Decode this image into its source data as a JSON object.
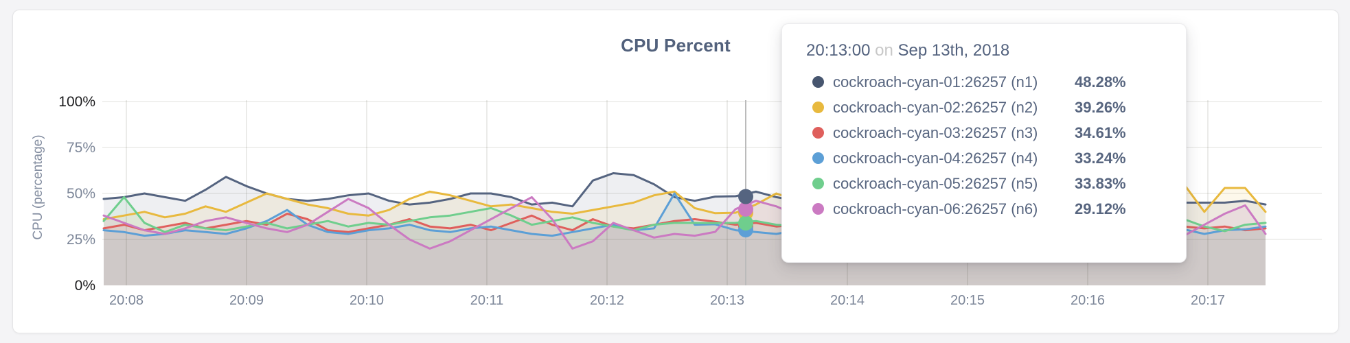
{
  "page": {
    "background": "#f4f4f6"
  },
  "chart_data": {
    "type": "line",
    "title": "CPU Percent",
    "ylabel": "CPU (percentage)",
    "xlabel": "",
    "ylim": [
      0,
      100
    ],
    "grid": true,
    "legend_position": "none",
    "x_ticks": [
      "20:08",
      "20:09",
      "20:10",
      "20:11",
      "20:12",
      "20:13",
      "20:14",
      "20:15",
      "20:16",
      "20:17"
    ],
    "y_ticks": [
      {
        "label": "0%",
        "value": 0,
        "extreme": true
      },
      {
        "label": "25%",
        "value": 25,
        "extreme": false
      },
      {
        "label": "50%",
        "value": 50,
        "extreme": false
      },
      {
        "label": "75%",
        "value": 75,
        "extreme": false
      },
      {
        "label": "100%",
        "value": 100,
        "extreme": true
      }
    ],
    "interval_seconds": 10,
    "fill_opacity": 0.1,
    "series": [
      {
        "name": "cockroach-cyan-01:26257 (n1)",
        "color": "#556480",
        "values": [
          47,
          48,
          50,
          48,
          46,
          52,
          59,
          54,
          50,
          47,
          46,
          47,
          49,
          50,
          46,
          44,
          45,
          47,
          50,
          50,
          48,
          44,
          45,
          43,
          57,
          61,
          60,
          55,
          48,
          46,
          48.28,
          48.5,
          51,
          48,
          46,
          45,
          46,
          47,
          46,
          47,
          48,
          47,
          46,
          47,
          46,
          45,
          46,
          47,
          46,
          45,
          44,
          45,
          44,
          45,
          45,
          45,
          46,
          44
        ]
      },
      {
        "name": "cockroach-cyan-02:26257 (n2)",
        "color": "#e8b93e",
        "values": [
          36,
          38,
          40,
          37,
          39,
          43,
          40,
          45,
          50,
          47,
          44,
          42,
          39,
          38,
          41,
          47,
          51,
          49,
          46,
          43,
          44,
          42,
          40,
          39,
          41,
          43,
          45,
          49,
          51,
          42,
          39.26,
          39.5,
          44,
          50,
          46,
          43,
          41,
          40,
          42,
          43,
          42,
          41,
          40,
          42,
          41,
          40,
          41,
          42,
          43,
          46,
          44,
          47,
          50,
          55,
          40,
          53,
          53,
          40
        ]
      },
      {
        "name": "cockroach-cyan-03:26257 (n3)",
        "color": "#df5f5c",
        "values": [
          31,
          33,
          30,
          32,
          34,
          31,
          33,
          35,
          33,
          39,
          36,
          30,
          29,
          31,
          33,
          36,
          32,
          31,
          33,
          30,
          34,
          38,
          33,
          30,
          36,
          32,
          31,
          33,
          35,
          36,
          34.61,
          33,
          34,
          32,
          33,
          31,
          32,
          33,
          34,
          32,
          31,
          32,
          33,
          31,
          32,
          33,
          32,
          31,
          33,
          34,
          32,
          31,
          33,
          32,
          31,
          32,
          30,
          31
        ]
      },
      {
        "name": "cockroach-cyan-04:26257 (n4)",
        "color": "#5c9fd6",
        "values": [
          30,
          29,
          27,
          28,
          30,
          29,
          28,
          31,
          35,
          41,
          33,
          29,
          28,
          30,
          31,
          33,
          30,
          29,
          31,
          32,
          30,
          28,
          27,
          29,
          31,
          33,
          30,
          31,
          50,
          33,
          33.24,
          30,
          29,
          28,
          30,
          31,
          30,
          29,
          28,
          30,
          31,
          30,
          29,
          30,
          31,
          30,
          29,
          30,
          31,
          30,
          29,
          31,
          30.5,
          30.5,
          28,
          30,
          30.5,
          32
        ]
      },
      {
        "name": "cockroach-cyan-05:26257 (n5)",
        "color": "#6fce8d",
        "values": [
          35,
          48,
          34,
          29,
          33,
          31,
          30,
          32,
          34,
          31,
          33,
          35,
          32,
          34,
          33,
          35,
          37,
          38,
          40,
          42,
          38,
          33,
          35,
          37,
          34,
          32,
          30,
          33,
          34,
          34,
          33.83,
          34,
          35,
          33,
          32,
          34,
          33,
          32,
          34,
          33,
          32,
          33,
          34,
          33,
          32,
          33,
          34,
          33,
          32,
          34,
          33,
          35,
          36,
          36,
          32,
          29.5,
          33,
          34
        ]
      },
      {
        "name": "cockroach-cyan-06:26257 (n6)",
        "color": "#cb7ac2",
        "values": [
          38,
          34,
          30,
          28,
          31,
          35,
          37,
          34,
          31,
          29,
          33,
          40,
          47,
          42,
          33,
          25,
          20,
          24,
          30,
          36,
          42,
          48,
          36,
          20,
          24,
          34,
          30,
          26,
          28,
          27,
          29.12,
          41.5,
          46,
          43,
          38,
          33,
          30,
          28,
          27,
          29,
          30,
          28,
          27,
          29,
          30,
          29,
          28,
          30,
          29,
          28,
          27,
          29,
          28,
          27,
          33,
          39,
          43.5,
          28
        ]
      }
    ]
  },
  "hover": {
    "guideline_color": "#bbbbbb",
    "dots": [
      {
        "series": 2,
        "value": 32.2
      },
      {
        "series": 3,
        "value": 30.2
      },
      {
        "series": 1,
        "value": 39.5
      },
      {
        "series": 4,
        "value": 33.9
      },
      {
        "series": 5,
        "value": 41.5
      },
      {
        "series": 0,
        "value": 48.3
      }
    ]
  },
  "tooltip": {
    "time": "20:13:00",
    "on_word": "on",
    "date": "Sep 13th, 2018",
    "rows": [
      {
        "label": "cockroach-cyan-01:26257 (n1)",
        "value": "48.28%",
        "color": "#47566f"
      },
      {
        "label": "cockroach-cyan-02:26257 (n2)",
        "value": "39.26%",
        "color": "#e8b93e"
      },
      {
        "label": "cockroach-cyan-03:26257 (n3)",
        "value": "34.61%",
        "color": "#df5f5c"
      },
      {
        "label": "cockroach-cyan-04:26257 (n4)",
        "value": "33.24%",
        "color": "#5c9fd6"
      },
      {
        "label": "cockroach-cyan-05:26257 (n5)",
        "value": "33.83%",
        "color": "#6fce8d"
      },
      {
        "label": "cockroach-cyan-06:26257 (n6)",
        "value": "29.12%",
        "color": "#cb7ac2"
      }
    ]
  }
}
